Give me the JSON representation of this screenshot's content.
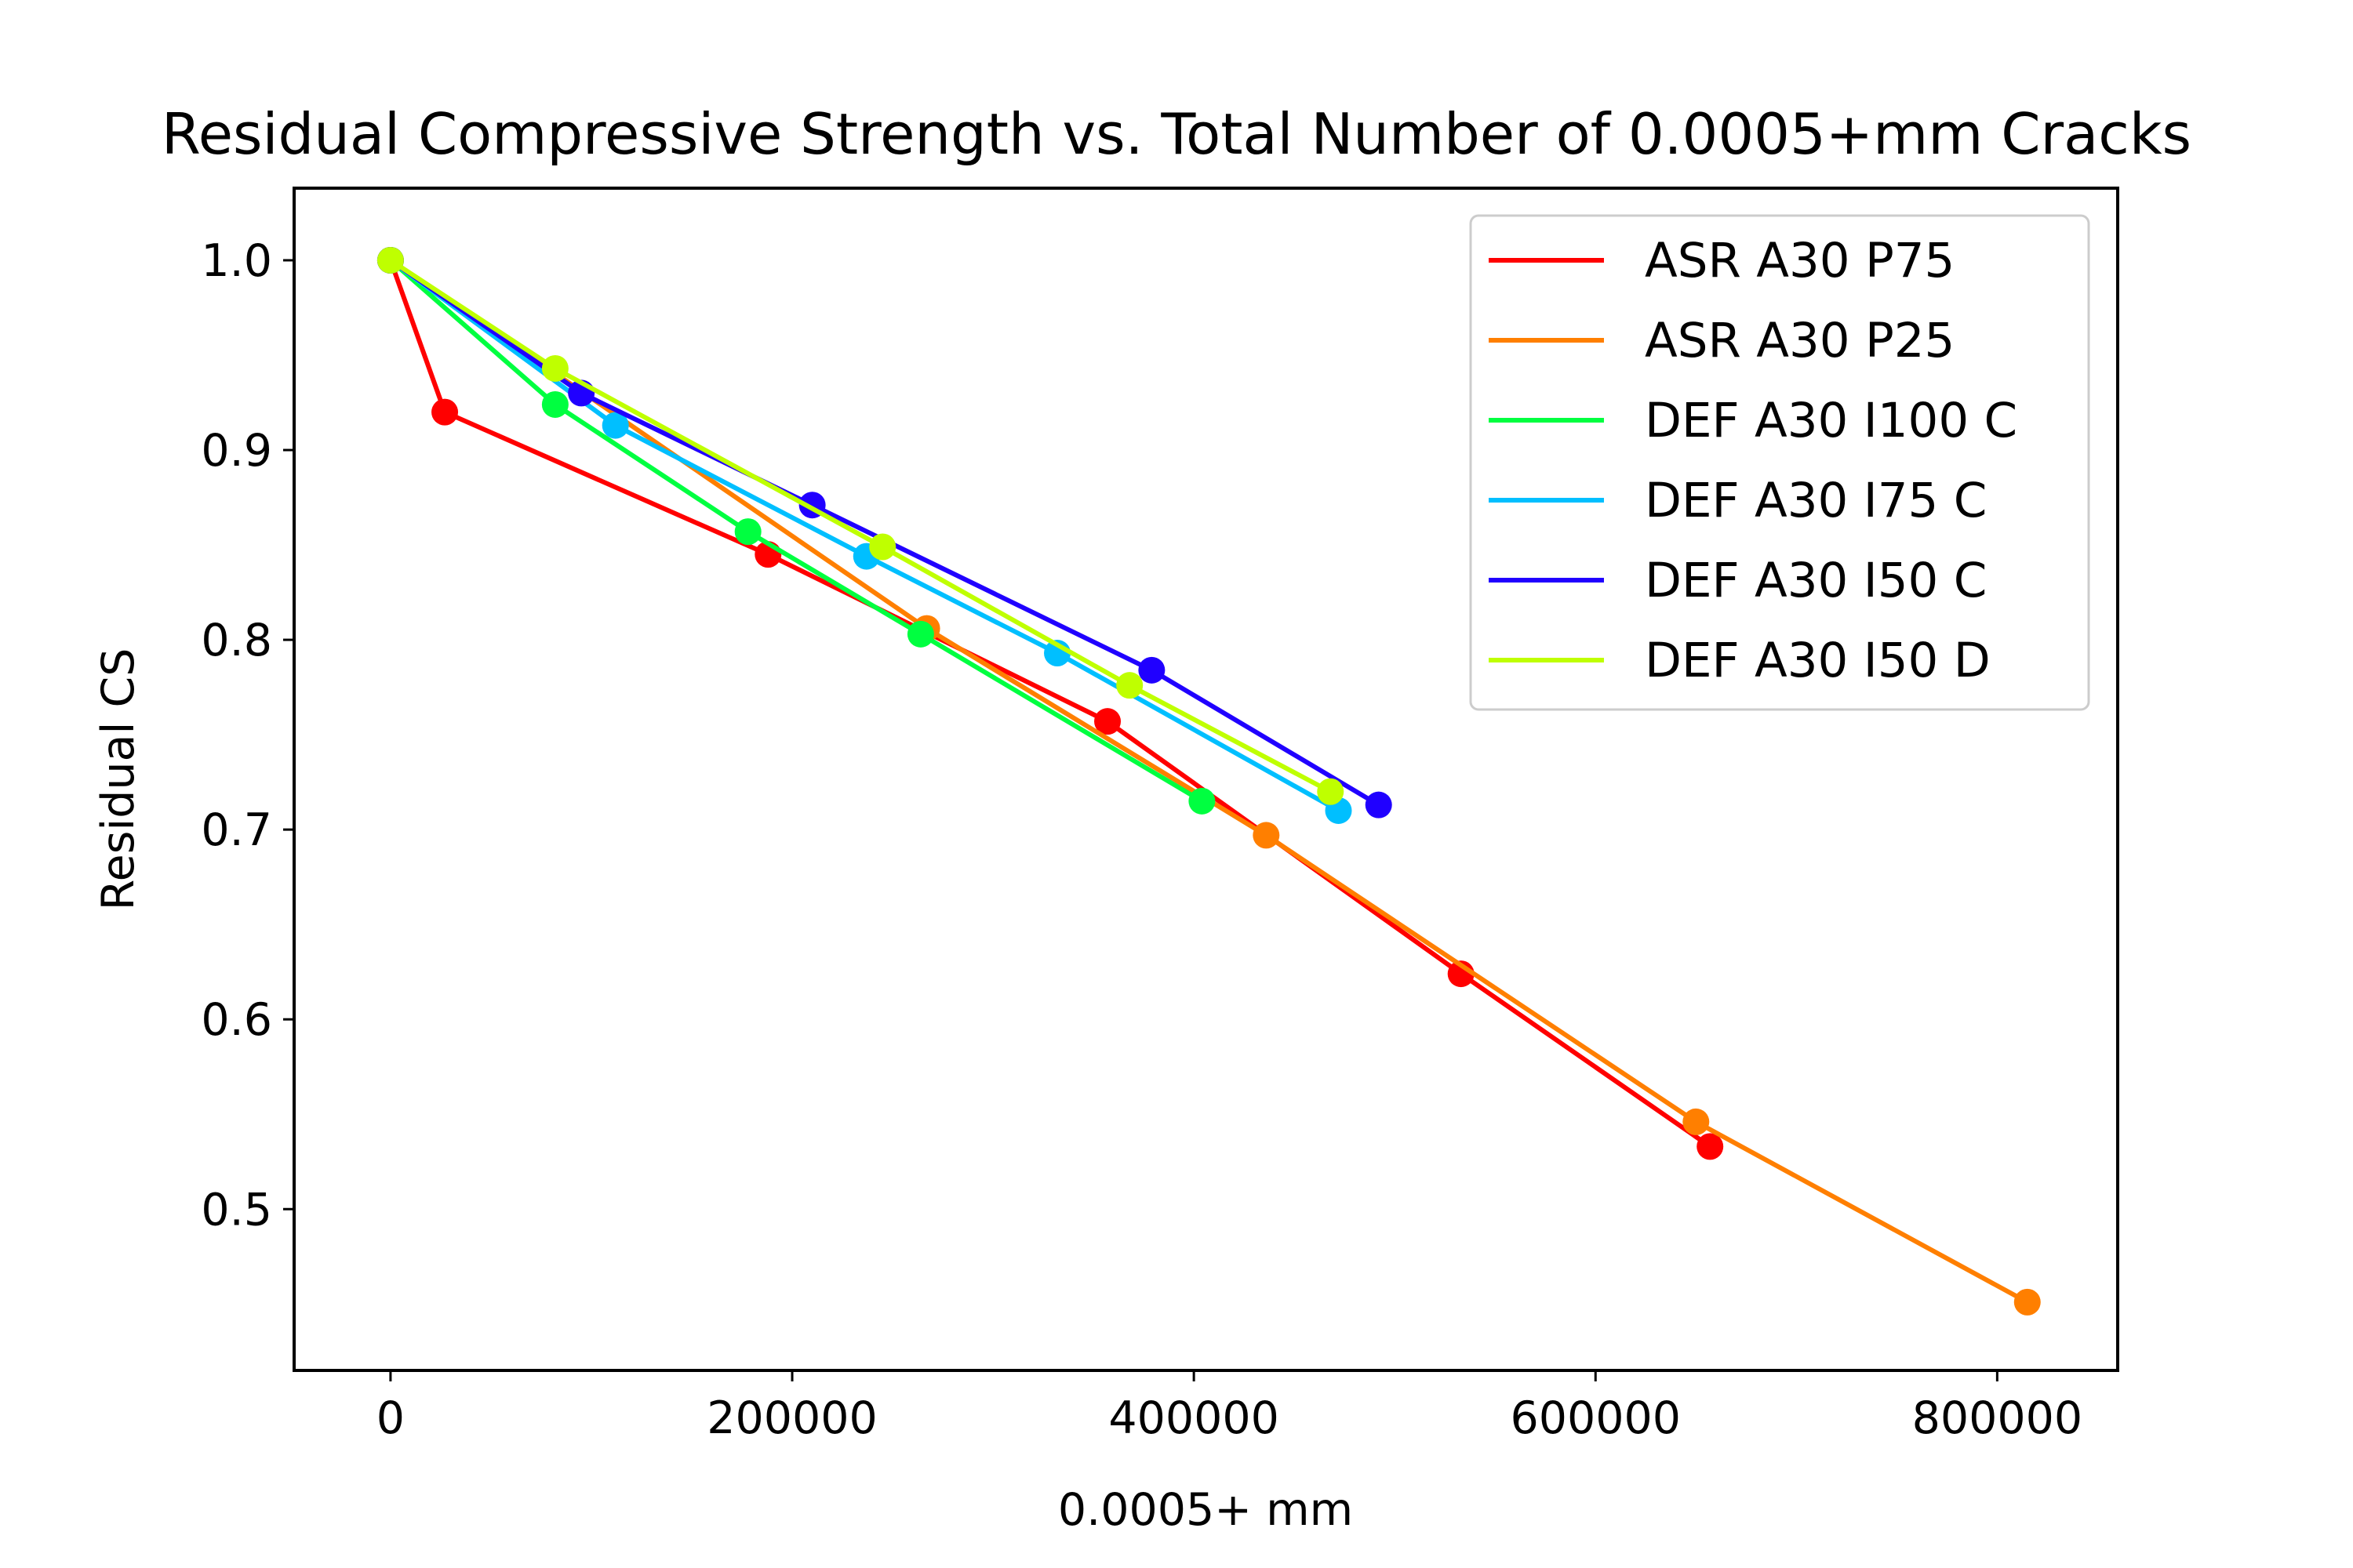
{
  "chart_data": {
    "type": "line",
    "title": "Residual Compressive Strength vs. Total Number of 0.0005+mm Cracks",
    "xlabel": "0.0005+ mm",
    "ylabel": "Residual CS",
    "xlim": [
      -48000,
      860000
    ],
    "ylim": [
      0.415,
      1.038
    ],
    "xticks": [
      0,
      200000,
      400000,
      600000,
      800000
    ],
    "xtick_labels": [
      "0",
      "200000",
      "400000",
      "600000",
      "800000"
    ],
    "yticks": [
      0.5,
      0.6,
      0.7,
      0.8,
      0.9,
      1.0
    ],
    "ytick_labels": [
      "0.5",
      "0.6",
      "0.7",
      "0.8",
      "0.9",
      "1.0"
    ],
    "grid": false,
    "legend_position": "top-right",
    "series": [
      {
        "name": "ASR A30 P75",
        "color": "#ff0000",
        "x": [
          0,
          27000,
          188000,
          357000,
          533000,
          657000
        ],
        "y": [
          1.0,
          0.92,
          0.845,
          0.757,
          0.624,
          0.533
        ]
      },
      {
        "name": "ASR A30 P25",
        "color": "#ff7f00",
        "x": [
          0,
          267000,
          436000,
          650000,
          815000
        ],
        "y": [
          1.0,
          0.806,
          0.697,
          0.546,
          0.451
        ]
      },
      {
        "name": "DEF A30 I100 C",
        "color": "#00ff40",
        "x": [
          0,
          82000,
          178000,
          264000,
          404000
        ],
        "y": [
          1.0,
          0.924,
          0.857,
          0.803,
          0.715
        ]
      },
      {
        "name": "DEF A30 I75 C",
        "color": "#00bfff",
        "x": [
          0,
          112000,
          237000,
          332000,
          472000
        ],
        "y": [
          1.0,
          0.913,
          0.844,
          0.793,
          0.71
        ]
      },
      {
        "name": "DEF A30 I50 C",
        "color": "#2000ff",
        "x": [
          0,
          95000,
          210000,
          379000,
          492000
        ],
        "y": [
          1.0,
          0.93,
          0.871,
          0.784,
          0.713
        ]
      },
      {
        "name": "DEF A30 I50 D",
        "color": "#bfff00",
        "x": [
          0,
          82000,
          245000,
          368000,
          468000
        ],
        "y": [
          1.0,
          0.943,
          0.849,
          0.776,
          0.72
        ]
      }
    ]
  }
}
